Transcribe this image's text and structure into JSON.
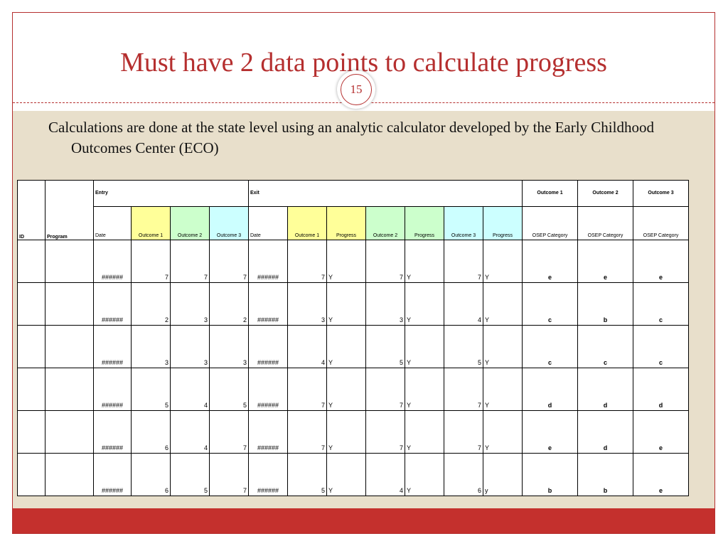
{
  "slide": {
    "title": "Must have 2 data points to calculate progress",
    "number": "15",
    "caption": "Calculations are done at the state level using an analytic calculator developed by the Early Childhood Outcomes Center (ECO)"
  },
  "colors": {
    "accent": "#b52f2f",
    "content_bg": "#e8dfcb",
    "footer": "#c4302d",
    "yellow": "#ffff99",
    "green": "#ccffcc",
    "cyan": "#ccffff",
    "category_red": "#e21f1f"
  },
  "table": {
    "group_headers": {
      "entry": "Entry",
      "exit": "Exit",
      "outcome1": "Outcome 1",
      "outcome2": "Outcome 2",
      "outcome3": "Outcome 3"
    },
    "columns": [
      "ID",
      "Program",
      "Date",
      "Outcome 1",
      "Outcome 2",
      "Outcome 3",
      "Date",
      "Outcome 1",
      "Progress",
      "Outcome 2",
      "Progress",
      "Outcome 3",
      "Progress",
      "OSEP Category",
      "OSEP Category",
      "OSEP Category"
    ],
    "rows": [
      [
        "",
        "",
        "######",
        "7",
        "7",
        "7",
        "######",
        "7",
        "Y",
        "7",
        "Y",
        "7",
        "Y",
        "e",
        "e",
        "e"
      ],
      [
        "",
        "",
        "######",
        "2",
        "3",
        "2",
        "######",
        "3",
        "Y",
        "3",
        "Y",
        "4",
        "Y",
        "c",
        "b",
        "c"
      ],
      [
        "",
        "",
        "######",
        "3",
        "3",
        "3",
        "######",
        "4",
        "Y",
        "5",
        "Y",
        "5",
        "Y",
        "c",
        "c",
        "c"
      ],
      [
        "",
        "",
        "######",
        "5",
        "4",
        "5",
        "######",
        "7",
        "Y",
        "7",
        "Y",
        "7",
        "Y",
        "d",
        "d",
        "d"
      ],
      [
        "",
        "",
        "######",
        "6",
        "4",
        "7",
        "######",
        "7",
        "Y",
        "7",
        "Y",
        "7",
        "Y",
        "e",
        "d",
        "e"
      ],
      [
        "",
        "",
        "######",
        "6",
        "5",
        "7",
        "######",
        "5",
        "Y",
        "4",
        "Y",
        "6",
        "y",
        "b",
        "b",
        "e"
      ]
    ]
  }
}
